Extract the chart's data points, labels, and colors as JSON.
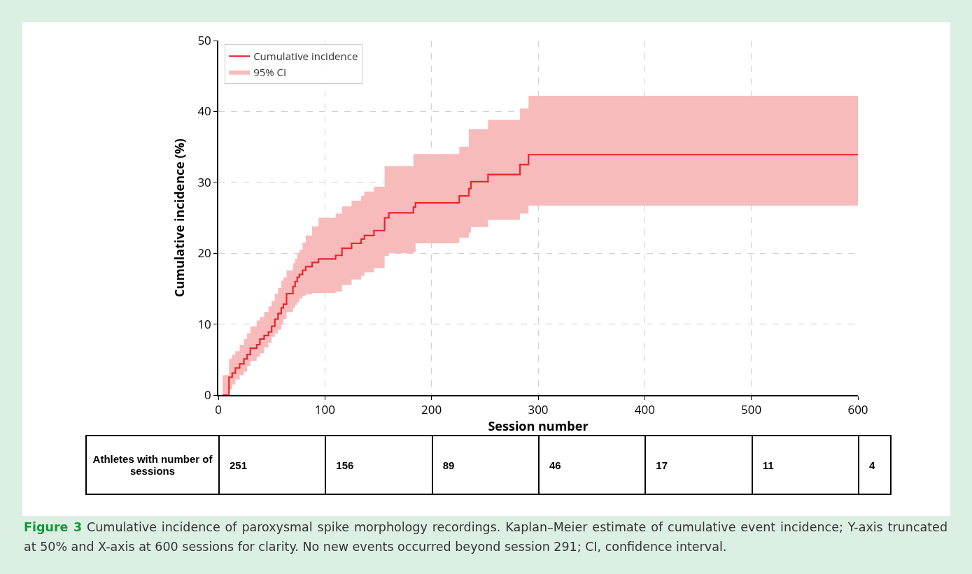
{
  "chart_data": {
    "type": "step",
    "xlabel": "Session number",
    "ylabel": "Cumulative incidence (%)",
    "x": [
      4,
      10,
      13,
      16,
      20,
      24,
      27,
      30,
      36,
      39,
      43,
      47,
      50,
      53,
      56,
      59,
      61,
      64,
      70,
      72,
      74,
      76,
      79,
      82,
      88,
      94,
      110,
      116,
      125,
      134,
      137,
      146,
      156,
      160,
      183,
      185,
      226,
      235,
      237,
      253,
      283,
      291,
      600
    ],
    "series": [
      {
        "name": "Cumulative incidence",
        "color": "#e8262b",
        "values": [
          0,
          2.5,
          3.1,
          3.8,
          4.4,
          5.1,
          5.7,
          6.6,
          7.1,
          7.9,
          8.4,
          8.9,
          9.7,
          10.7,
          11.5,
          12.3,
          12.8,
          14.3,
          15.3,
          16.0,
          16.6,
          17.0,
          17.6,
          18.1,
          18.7,
          19.2,
          19.7,
          20.7,
          21.4,
          22.0,
          22.5,
          23.2,
          25.0,
          25.7,
          26.5,
          27.1,
          28.1,
          29.1,
          30.1,
          31.1,
          32.5,
          33.9,
          33.9
        ]
      },
      {
        "name": "95% CI",
        "color": "#f7bbbc",
        "values": [
          null,
          null,
          null,
          null,
          null,
          null,
          null,
          null,
          null,
          null,
          null,
          null,
          null,
          null,
          null,
          null,
          null,
          null,
          null,
          null,
          null,
          null,
          null,
          null,
          null,
          null,
          null,
          null,
          null,
          null,
          null,
          null,
          null,
          null,
          null,
          null,
          null,
          null,
          null,
          null,
          null,
          null,
          null
        ],
        "lower": [
          0,
          0.8,
          1.5,
          2.2,
          2.8,
          3.3,
          4.1,
          4.8,
          5.4,
          5.9,
          6.7,
          7.4,
          8.2,
          8.7,
          9.2,
          9.9,
          10.7,
          11.7,
          12.3,
          12.7,
          13.1,
          13.6,
          14.0,
          14.2,
          14.4,
          14.4,
          14.6,
          15.5,
          16.3,
          16.8,
          17.3,
          17.9,
          19.6,
          20.0,
          20.2,
          21.4,
          22.2,
          22.9,
          23.7,
          24.7,
          25.6,
          26.7,
          26.7
        ],
        "upper": [
          2.8,
          5.1,
          5.7,
          6.2,
          7.1,
          7.9,
          8.7,
          9.7,
          10.5,
          11.0,
          11.7,
          12.5,
          13.3,
          14.3,
          15.1,
          16.1,
          16.6,
          17.6,
          18.6,
          19.2,
          20.0,
          20.5,
          21.5,
          22.5,
          23.8,
          25.0,
          25.6,
          26.6,
          27.4,
          28.1,
          28.7,
          29.4,
          32.3,
          32.3,
          34.0,
          34.0,
          35.0,
          37.5,
          37.5,
          38.8,
          40.4,
          42.2,
          42.2
        ]
      }
    ],
    "xlim": [
      0,
      600
    ],
    "xticks": [
      0,
      100,
      200,
      300,
      400,
      500,
      600
    ],
    "ylim": [
      0,
      50
    ],
    "yticks": [
      0,
      10,
      20,
      30,
      40,
      50
    ],
    "grid": true,
    "legend": "top left",
    "line_style": "solid",
    "annotations": [
      "Athletes with number of sessions",
      "251",
      "156",
      "89",
      "46",
      "17",
      "11",
      "4",
      "Figure 3",
      "Cumulative incidence of paroxysmal spike morphology recordings. Kaplan–Meier estimate of cumulative event incidence; Y-axis truncated at 50% and X-axis at 600 sessions for clarity. No new events occurred beyond session 291; CI, confidence interval."
    ]
  }
}
